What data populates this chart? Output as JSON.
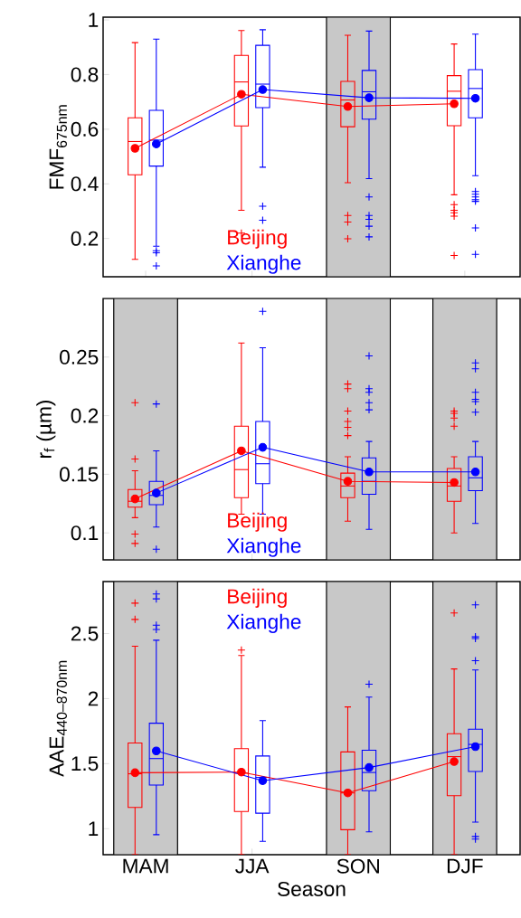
{
  "chart_data": [
    {
      "type": "box",
      "ylabel": "FMF$_{675nm}$",
      "categories": [
        "MAM",
        "JJA",
        "SON",
        "DJF"
      ],
      "ylim": [
        0.06,
        1.01
      ],
      "yticks": [
        0.2,
        0.4,
        0.6,
        0.8,
        1
      ],
      "tick_labels": "y",
      "bands": [
        {
          "axis": "x",
          "from": "SON",
          "to": "SON",
          "color": "#c8c8c8"
        }
      ],
      "series": [
        {
          "name": "Beijing",
          "color": "#ff0000",
          "boxes": [
            {
              "low": 0.124,
              "q1": 0.433,
              "median": 0.555,
              "q3": 0.642,
              "high": 0.917
            },
            {
              "low": 0.303,
              "q1": 0.612,
              "median": 0.773,
              "q3": 0.87,
              "high": 0.961,
              "outliers": [
                0.22
              ]
            },
            {
              "low": 0.404,
              "q1": 0.609,
              "median": 0.707,
              "q3": 0.775,
              "high": 0.944,
              "outliers": [
                0.284,
                0.26,
                0.199
              ]
            },
            {
              "low": 0.36,
              "q1": 0.613,
              "median": 0.739,
              "q3": 0.796,
              "high": 0.912,
              "outliers": [
                0.324,
                0.303,
                0.294,
                0.282,
                0.138
              ]
            }
          ]
        },
        {
          "name": "Xianghe",
          "color": "#0000ff",
          "boxes": [
            {
              "low": 0.172,
              "q1": 0.465,
              "median": 0.56,
              "q3": 0.669,
              "high": 0.93,
              "outliers": [
                0.155,
                0.148,
                0.1
              ]
            },
            {
              "low": 0.461,
              "q1": 0.679,
              "median": 0.765,
              "q3": 0.907,
              "high": 0.964,
              "outliers": [
                0.318,
                0.267
              ]
            },
            {
              "low": 0.419,
              "q1": 0.637,
              "median": 0.737,
              "q3": 0.815,
              "high": 0.959,
              "outliers": [
                0.352,
                0.284,
                0.27,
                0.245,
                0.206
              ]
            },
            {
              "low": 0.43,
              "q1": 0.642,
              "median": 0.749,
              "q3": 0.818,
              "high": 0.948,
              "outliers": [
                0.372,
                0.362,
                0.352,
                0.342,
                0.336,
                0.239,
                0.142
              ]
            }
          ]
        },
        {
          "type": "line",
          "color": "#ff0000",
          "marker": "circle",
          "values": [
            0.53,
            0.728,
            0.683,
            0.693
          ]
        },
        {
          "type": "line",
          "color": "#0000ff",
          "marker": "circle",
          "values": [
            0.546,
            0.745,
            0.715,
            0.713
          ]
        }
      ]
    },
    {
      "type": "box",
      "ylabel": "r$_{f}$ (µm)",
      "categories": [
        "MAM",
        "JJA",
        "SON",
        "DJF"
      ],
      "ylim": [
        0.077,
        0.3
      ],
      "yticks": [
        0.1,
        0.15,
        0.2,
        0.25
      ],
      "tick_labels": "y",
      "bands": [
        {
          "axis": "x",
          "from": "MAM",
          "to": "MAM",
          "color": "#c8c8c8"
        },
        {
          "axis": "x",
          "from": "SON",
          "to": "SON",
          "color": "#c8c8c8"
        },
        {
          "axis": "x",
          "from": "DJF",
          "to": "DJF",
          "color": "#c8c8c8"
        }
      ],
      "series": [
        {
          "name": "Beijing",
          "color": "#ff0000",
          "boxes": [
            {
              "low": 0.113,
              "q1": 0.122,
              "median": 0.127,
              "q3": 0.137,
              "high": 0.153,
              "outliers": [
                0.211,
                0.163,
                0.099,
                0.091
              ]
            },
            {
              "low": 0.116,
              "q1": 0.13,
              "median": 0.154,
              "q3": 0.191,
              "high": 0.262
            },
            {
              "low": 0.11,
              "q1": 0.13,
              "median": 0.14,
              "q3": 0.151,
              "high": 0.165,
              "outliers": [
                0.227,
                0.223,
                0.204,
                0.195,
                0.19,
                0.183
              ]
            },
            {
              "low": 0.1,
              "q1": 0.127,
              "median": 0.14,
              "q3": 0.155,
              "high": 0.165,
              "outliers": [
                0.204,
                0.202,
                0.198,
                0.191
              ]
            }
          ]
        },
        {
          "name": "Xianghe",
          "color": "#0000ff",
          "boxes": [
            {
              "low": 0.105,
              "q1": 0.124,
              "median": 0.132,
              "q3": 0.144,
              "high": 0.17,
              "outliers": [
                0.21,
                0.086
              ]
            },
            {
              "low": 0.116,
              "q1": 0.142,
              "median": 0.159,
              "q3": 0.195,
              "high": 0.258,
              "outliers": [
                0.289
              ]
            },
            {
              "low": 0.103,
              "q1": 0.133,
              "median": 0.144,
              "q3": 0.164,
              "high": 0.178,
              "outliers": [
                0.251,
                0.223,
                0.22,
                0.211,
                0.205
              ]
            },
            {
              "low": 0.108,
              "q1": 0.136,
              "median": 0.147,
              "q3": 0.165,
              "high": 0.178,
              "outliers": [
                0.245,
                0.24,
                0.22,
                0.214,
                0.212,
                0.203
              ]
            }
          ]
        },
        {
          "type": "line",
          "color": "#ff0000",
          "marker": "circle",
          "values": [
            0.129,
            0.17,
            0.144,
            0.143
          ]
        },
        {
          "type": "line",
          "color": "#0000ff",
          "marker": "circle",
          "values": [
            0.134,
            0.173,
            0.152,
            0.152
          ]
        }
      ]
    },
    {
      "type": "box",
      "xlabel": "Season",
      "ylabel": "AAE$_{440–870nm}$",
      "categories": [
        "MAM",
        "JJA",
        "SON",
        "DJF"
      ],
      "ylim": [
        0.8,
        2.9
      ],
      "yticks": [
        1,
        1.5,
        2,
        2.5
      ],
      "bands": [
        {
          "axis": "x",
          "from": "MAM",
          "to": "MAM",
          "color": "#c8c8c8"
        },
        {
          "axis": "x",
          "from": "SON",
          "to": "SON",
          "color": "#c8c8c8"
        },
        {
          "axis": "x",
          "from": "DJF",
          "to": "DJF",
          "color": "#c8c8c8"
        }
      ],
      "series": [
        {
          "name": "Beijing",
          "color": "#ff0000",
          "boxes": [
            {
              "low": 0.8,
              "q1": 1.163,
              "median": 1.422,
              "q3": 1.659,
              "high": 2.403,
              "outliers": [
                2.734,
                2.609
              ]
            },
            {
              "low": 0.8,
              "q1": 1.132,
              "median": 1.427,
              "q3": 1.615,
              "high": 2.332,
              "outliers": [
                2.373
              ]
            },
            {
              "low": 0.8,
              "q1": 0.992,
              "median": 1.275,
              "q3": 1.59,
              "high": 1.936
            },
            {
              "low": 0.8,
              "q1": 1.254,
              "median": 1.554,
              "q3": 1.73,
              "high": 2.228,
              "outliers": [
                2.658
              ]
            }
          ]
        },
        {
          "name": "Xianghe",
          "color": "#0000ff",
          "boxes": [
            {
              "low": 0.954,
              "q1": 1.336,
              "median": 1.539,
              "q3": 1.811,
              "high": 2.449,
              "outliers": [
                2.805,
                2.767,
                2.564,
                2.531
              ]
            },
            {
              "low": 0.903,
              "q1": 1.119,
              "median": 1.394,
              "q3": 1.559,
              "high": 1.831
            },
            {
              "low": 0.975,
              "q1": 1.292,
              "median": 1.432,
              "q3": 1.603,
              "high": 2.012,
              "outliers": [
                2.111
              ]
            },
            {
              "low": 1.05,
              "q1": 1.44,
              "median": 1.648,
              "q3": 1.765,
              "high": 2.22,
              "outliers": [
                2.721,
                2.475,
                2.462,
                2.292,
                0.94,
                0.92
              ]
            }
          ]
        },
        {
          "type": "line",
          "color": "#ff0000",
          "marker": "circle",
          "values": [
            1.43,
            1.435,
            1.275,
            1.516
          ]
        },
        {
          "type": "line",
          "color": "#0000ff",
          "marker": "circle",
          "values": [
            1.598,
            1.369,
            1.47,
            1.631
          ]
        }
      ]
    }
  ]
}
